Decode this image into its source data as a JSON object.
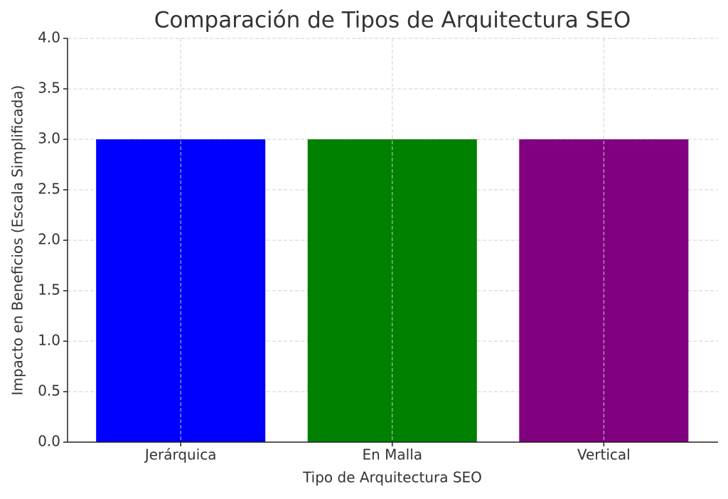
{
  "chart_data": {
    "type": "bar",
    "title": "Comparación de Tipos de Arquitectura SEO",
    "x_label": "Tipo de Arquitectura SEO",
    "y_label": "Impacto en Beneficios (Escala Simplificada)",
    "categories": [
      "Jerárquica",
      "En Malla",
      "Vertical"
    ],
    "values": [
      3,
      3,
      3
    ],
    "colors": [
      "#0000ff",
      "#008000",
      "#800080"
    ],
    "ylim": [
      0,
      4
    ],
    "yticks": [
      {
        "value": 0,
        "label": "0.0"
      },
      0.5,
      {
        "value": 1,
        "label": "1.0"
      },
      1.5,
      {
        "value": 2,
        "label": "2.0"
      },
      2.5,
      {
        "value": 3,
        "label": "3.0"
      },
      3.5,
      {
        "value": 4,
        "label": "4.0"
      }
    ],
    "grid": true
  }
}
